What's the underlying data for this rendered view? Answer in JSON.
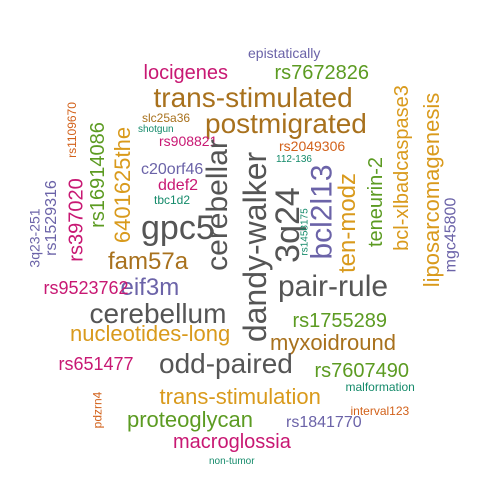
{
  "colors": {
    "orange": "#d99a1c",
    "brown": "#a8711d",
    "green": "#5c9b22",
    "purple": "#6b63a8",
    "magenta": "#c81873",
    "gray": "#555555",
    "teal": "#148a6a",
    "rust": "#d2611a"
  },
  "words": [
    {
      "text": "epistatically",
      "color": "purple"
    },
    {
      "text": "locigenes",
      "color": "magenta"
    },
    {
      "text": "rs7672826",
      "color": "green"
    },
    {
      "text": "trans-stimulated",
      "color": "brown"
    },
    {
      "text": "postmigrated",
      "color": "brown"
    },
    {
      "text": "slc25a36",
      "color": "brown"
    },
    {
      "text": "shotgun",
      "color": "teal"
    },
    {
      "text": "rs908821",
      "color": "magenta"
    },
    {
      "text": "rs2049306",
      "color": "rust"
    },
    {
      "text": "112-136",
      "color": "teal"
    },
    {
      "text": "c20orf46",
      "color": "purple"
    },
    {
      "text": "ddef2",
      "color": "magenta"
    },
    {
      "text": "tbc1d2",
      "color": "teal"
    },
    {
      "text": "gpc5",
      "color": "gray"
    },
    {
      "text": "fam57a",
      "color": "brown"
    },
    {
      "text": "eif3m",
      "color": "purple"
    },
    {
      "text": "cerebellum",
      "color": "gray"
    },
    {
      "text": "pair-rule",
      "color": "gray"
    },
    {
      "text": "rs9523762",
      "color": "magenta"
    },
    {
      "text": "nucleotides-long",
      "color": "orange"
    },
    {
      "text": "rs1755289",
      "color": "green"
    },
    {
      "text": "myxoidround",
      "color": "brown"
    },
    {
      "text": "rs651477",
      "color": "magenta"
    },
    {
      "text": "odd-paired",
      "color": "gray"
    },
    {
      "text": "rs7607490",
      "color": "green"
    },
    {
      "text": "malformation",
      "color": "teal"
    },
    {
      "text": "trans-stimulation",
      "color": "orange"
    },
    {
      "text": "proteoglycan",
      "color": "green"
    },
    {
      "text": "interval123",
      "color": "rust"
    },
    {
      "text": "rs1841770",
      "color": "purple"
    },
    {
      "text": "macroglossia",
      "color": "magenta"
    },
    {
      "text": "non-tumor",
      "color": "teal"
    },
    {
      "text": "rs1109670",
      "color": "rust"
    },
    {
      "text": "rs1529316",
      "color": "purple"
    },
    {
      "text": "3q23-251",
      "color": "purple"
    },
    {
      "text": "rs397020",
      "color": "magenta"
    },
    {
      "text": "rs16914086",
      "color": "green"
    },
    {
      "text": "6401625the",
      "color": "orange"
    },
    {
      "text": "cerebellar",
      "color": "gray"
    },
    {
      "text": "dandy-walker",
      "color": "gray"
    },
    {
      "text": "3q24",
      "color": "gray"
    },
    {
      "text": "bcl2l13",
      "color": "purple"
    },
    {
      "text": "rs1458175",
      "color": "teal"
    },
    {
      "text": "ten-modz",
      "color": "orange"
    },
    {
      "text": "teneurin-2",
      "color": "green"
    },
    {
      "text": "bcl-xlbadcaspase3",
      "color": "orange"
    },
    {
      "text": "liposarcomagenesis",
      "color": "orange"
    },
    {
      "text": "mgc45800",
      "color": "purple"
    },
    {
      "text": "pdzrn4",
      "color": "rust"
    }
  ]
}
